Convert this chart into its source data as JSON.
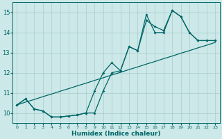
{
  "xlabel": "Humidex (Indice chaleur)",
  "background_color": "#cce8e8",
  "grid_color": "#aacccc",
  "line_color": "#006666",
  "xlim": [
    -0.5,
    23.5
  ],
  "ylim": [
    9.5,
    15.5
  ],
  "xticks": [
    0,
    1,
    2,
    3,
    4,
    5,
    6,
    7,
    8,
    9,
    10,
    11,
    12,
    13,
    14,
    15,
    16,
    17,
    18,
    19,
    20,
    21,
    22,
    23
  ],
  "yticks": [
    10,
    11,
    12,
    13,
    14,
    15
  ],
  "line1_x": [
    0,
    1,
    2,
    3,
    4,
    5,
    6,
    7,
    8,
    9,
    10,
    11,
    12,
    13,
    14,
    15,
    16,
    17,
    18,
    19,
    20,
    21,
    22,
    23
  ],
  "line1_y": [
    10.4,
    10.7,
    10.2,
    10.1,
    9.8,
    9.8,
    9.85,
    9.9,
    10.0,
    10.0,
    11.1,
    12.0,
    12.1,
    13.3,
    13.1,
    14.9,
    14.0,
    14.0,
    15.1,
    14.8,
    14.0,
    13.6,
    13.6,
    13.6
  ],
  "line2_x": [
    0,
    1,
    2,
    3,
    4,
    5,
    6,
    7,
    8,
    9,
    10,
    11,
    12,
    13,
    14,
    15,
    16,
    17,
    18,
    19,
    20,
    21,
    22,
    23
  ],
  "line2_y": [
    10.4,
    10.7,
    10.2,
    10.1,
    9.8,
    9.8,
    9.85,
    9.9,
    10.0,
    11.1,
    12.0,
    12.5,
    12.1,
    13.3,
    13.1,
    14.6,
    14.3,
    14.1,
    15.1,
    14.8,
    14.0,
    13.6,
    13.6,
    13.6
  ],
  "line3_x": [
    0,
    1,
    2,
    3,
    4,
    5,
    6,
    7,
    8,
    9,
    10,
    11,
    12,
    13,
    14,
    15,
    16,
    17,
    18,
    19,
    20,
    21,
    22,
    23
  ],
  "line3_y": [
    10.4,
    10.54,
    10.67,
    10.81,
    10.94,
    11.08,
    11.21,
    11.35,
    11.48,
    11.62,
    11.75,
    11.89,
    12.02,
    12.16,
    12.29,
    12.43,
    12.56,
    12.7,
    12.83,
    12.97,
    13.1,
    13.24,
    13.37,
    13.51
  ]
}
